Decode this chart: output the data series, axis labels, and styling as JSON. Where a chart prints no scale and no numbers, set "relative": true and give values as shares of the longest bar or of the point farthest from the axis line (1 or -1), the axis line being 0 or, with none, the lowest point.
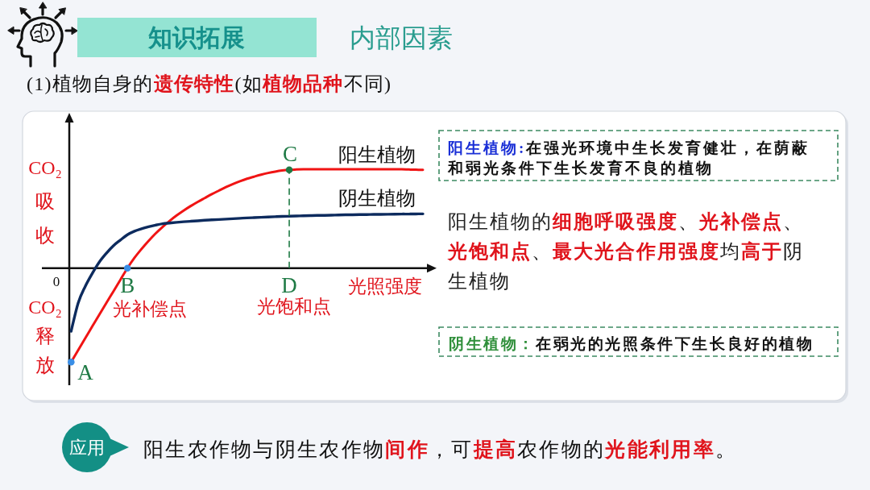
{
  "chart_data": {
    "type": "line",
    "title": "知识拓展",
    "subtitle": "内部因素",
    "xlabel": "光照强度",
    "ylabel": "CO₂吸收",
    "relative": true,
    "categories": [
      null,
      null,
      null,
      null,
      null,
      null,
      null,
      null,
      "B",
      null,
      null,
      null,
      null,
      null,
      null,
      null,
      null,
      null,
      null,
      null,
      null,
      null,
      null,
      null,
      null,
      null,
      null,
      null,
      null,
      null,
      null,
      "D",
      null,
      null,
      null,
      null,
      null,
      null,
      null,
      null,
      null,
      null,
      null,
      null,
      null,
      null,
      null,
      null,
      null,
      null,
      null
    ],
    "series": [
      {
        "name": "阳生植物",
        "color": "#f01414",
        "values": [
          -0.95,
          -0.829,
          -0.709,
          -0.59,
          -0.471,
          -0.353,
          -0.236,
          -0.118,
          0,
          0.104,
          0.193,
          0.275,
          0.35,
          0.417,
          0.478,
          0.533,
          0.583,
          0.628,
          0.67,
          0.709,
          0.748,
          0.784,
          0.819,
          0.851,
          0.879,
          0.904,
          0.925,
          0.945,
          0.962,
          0.976,
          0.987,
          0.994,
          0.997,
          0.999,
          1,
          1,
          1,
          1,
          1,
          1,
          1,
          1,
          1,
          1,
          1,
          1,
          1,
          0.999,
          0.997,
          0.995,
          0.994
        ]
      },
      {
        "name": "阴生植物",
        "color": "#0d2b5e",
        "values": [
          -0.638,
          -0.352,
          -0.185,
          -0.054,
          0.061,
          0.15,
          0.226,
          0.284,
          0.338,
          0.374,
          0.398,
          0.418,
          0.435,
          0.449,
          0.456,
          0.463,
          0.469,
          0.474,
          0.479,
          0.484,
          0.488,
          0.492,
          0.496,
          0.5,
          0.504,
          0.508,
          0.511,
          0.514,
          0.517,
          0.52,
          0.523,
          0.525,
          0.527,
          0.529,
          0.531,
          0.533,
          0.534,
          0.536,
          0.537,
          0.539,
          0.54,
          0.541,
          0.542,
          0.543,
          0.544,
          0.545,
          0.546,
          0.547,
          0.547,
          0.548,
          0.549
        ]
      },
      {
        "type": "lollipop",
        "color": "#1f7a45",
        "line_style": "dashed",
        "values": [
          null,
          null,
          null,
          null,
          null,
          null,
          null,
          null,
          null,
          null,
          null,
          null,
          null,
          null,
          null,
          null,
          null,
          null,
          null,
          null,
          null,
          null,
          null,
          null,
          null,
          null,
          null,
          null,
          null,
          null,
          null,
          0.994,
          null,
          null,
          null,
          null,
          null,
          null,
          null,
          null,
          null,
          null,
          null,
          null,
          null,
          null,
          null,
          null,
          null,
          null,
          null
        ]
      },
      {
        "type": "scatter",
        "color": "#3a8ee6",
        "values": [
          -0.95,
          null,
          null,
          null,
          null,
          null,
          null,
          null,
          0,
          null,
          null,
          null,
          null,
          null,
          null,
          null,
          null,
          null,
          null,
          null,
          null,
          null,
          null,
          null,
          null,
          null,
          null,
          null,
          null,
          null,
          null,
          null,
          null,
          null,
          null,
          null,
          null,
          null,
          null,
          null,
          null,
          null,
          null,
          null,
          null,
          null,
          null,
          null,
          null,
          null,
          null
        ]
      }
    ],
    "annotations": [
      "(1)植物自身的**遗传特性**(如**植物品种**不同)",
      "CO₂释放",
      "0",
      "A",
      "C",
      "光补偿点",
      "光饱和点",
      "**阳生植物:**在强光环境中生长发育健壮，在荫蔽和弱光条件下生长发育不良的植物",
      "阳生植物的**细胞呼吸强度**、**光补偿点**、**光饱和点**、**最大光合作用强度**均**高于**阴生植物",
      "**阴生植物：**在弱光的光照条件下生长良好的植物",
      "应用",
      "阳生农作物与阴生农作物**间作**，可**提高**农作物的**光能利用率**。"
    ]
  }
}
